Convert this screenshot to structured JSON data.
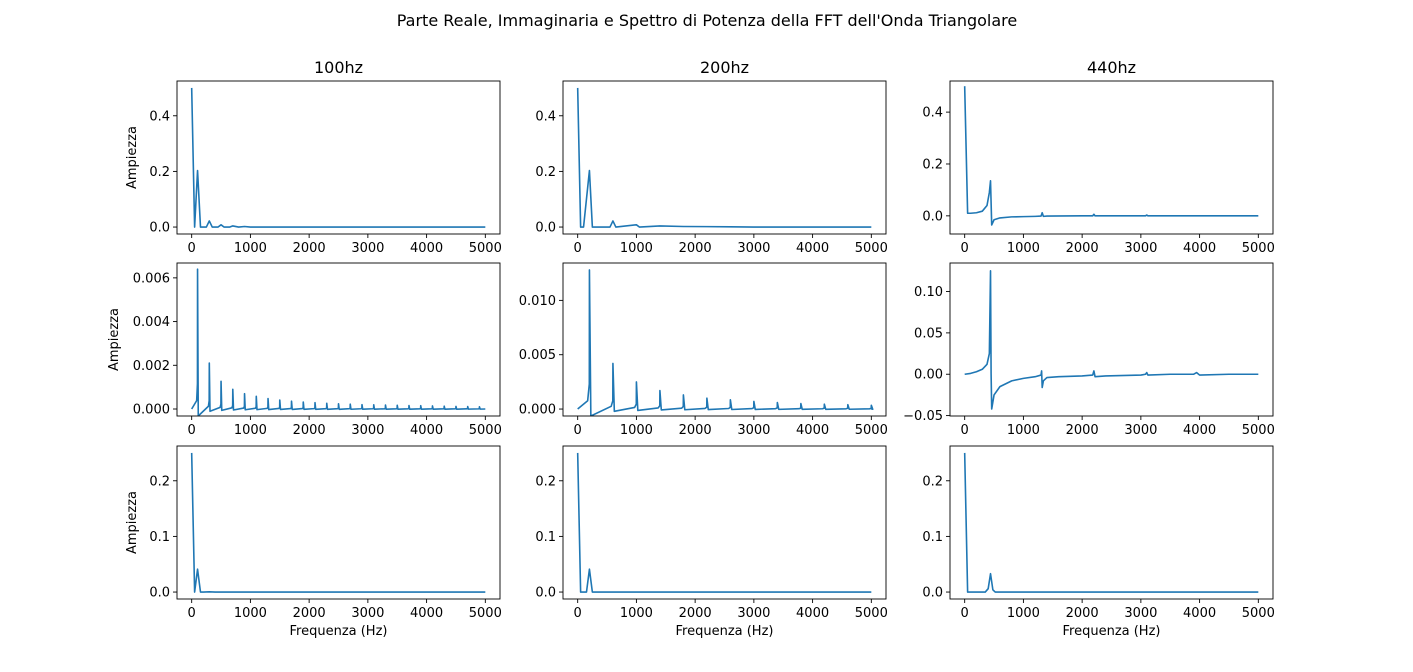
{
  "figure": {
    "suptitle": "Parte Reale, Immaginaria e Spettro di Potenza della FFT dell'Onda Triangolare"
  },
  "style": {
    "line_color": "#1f77b4",
    "axis_color": "#000000",
    "background": "#ffffff"
  },
  "chart_data": [
    {
      "type": "line",
      "row": 0,
      "col": 0,
      "title": "100hz",
      "xlabel": "",
      "ylabel": "Ampiezza",
      "xlim": [
        -250,
        5250
      ],
      "ylim": [
        -0.025,
        0.525
      ],
      "xticks": [
        0,
        1000,
        2000,
        3000,
        4000,
        5000
      ],
      "yticks": [
        0.0,
        0.2,
        0.4
      ],
      "ytick_labels": [
        "0.0",
        "0.2",
        "0.4"
      ],
      "x": [
        0,
        50,
        100,
        150,
        200,
        250,
        300,
        350,
        400,
        450,
        500,
        550,
        600,
        650,
        700,
        800,
        900,
        1000,
        1200,
        1500,
        2000,
        3000,
        4000,
        5000
      ],
      "y": [
        0.5,
        0.0,
        0.203,
        0.0,
        0.0,
        0.0,
        0.022,
        0.0,
        0.0,
        0.0,
        0.008,
        0.0,
        0.0,
        0.0,
        0.004,
        0.0,
        0.002,
        0.0,
        0.0,
        0.0,
        0.0,
        0.0,
        0.0,
        0.0
      ]
    },
    {
      "type": "line",
      "row": 0,
      "col": 1,
      "title": "200hz",
      "xlabel": "",
      "ylabel": "",
      "xlim": [
        -250,
        5250
      ],
      "ylim": [
        -0.025,
        0.525
      ],
      "xticks": [
        0,
        1000,
        2000,
        3000,
        4000,
        5000
      ],
      "yticks": [
        0.0,
        0.2,
        0.4
      ],
      "ytick_labels": [
        "0.0",
        "0.2",
        "0.4"
      ],
      "x": [
        0,
        50,
        100,
        200,
        250,
        300,
        550,
        600,
        650,
        1000,
        1050,
        1400,
        1800,
        2200,
        2600,
        3000,
        4000,
        5000
      ],
      "y": [
        0.5,
        0.0,
        0.0,
        0.203,
        0.0,
        0.0,
        0.0,
        0.022,
        0.0,
        0.008,
        0.0,
        0.004,
        0.002,
        0.0015,
        0.001,
        0.0,
        0.0,
        0.0
      ]
    },
    {
      "type": "line",
      "row": 0,
      "col": 2,
      "title": "440hz",
      "xlabel": "",
      "ylabel": "",
      "xlim": [
        -250,
        5250
      ],
      "ylim": [
        -0.07,
        0.52
      ],
      "xticks": [
        0,
        1000,
        2000,
        3000,
        4000,
        5000
      ],
      "yticks": [
        0.0,
        0.2,
        0.4
      ],
      "ytick_labels": [
        "0.0",
        "0.2",
        "0.4"
      ],
      "x": [
        0,
        50,
        100,
        200,
        300,
        380,
        420,
        440,
        460,
        500,
        600,
        800,
        1000,
        1200,
        1300,
        1320,
        1340,
        1400,
        2000,
        2180,
        2200,
        2220,
        3000,
        3080,
        3100,
        3120,
        4000,
        5000
      ],
      "y": [
        0.5,
        0.01,
        0.01,
        0.012,
        0.018,
        0.04,
        0.09,
        0.135,
        -0.035,
        -0.015,
        -0.008,
        -0.004,
        -0.003,
        -0.002,
        -0.001,
        0.012,
        -0.002,
        -0.001,
        0.0,
        0.0,
        0.006,
        0.0,
        0.0,
        0.0,
        0.003,
        0.0,
        0.0,
        0.0
      ]
    },
    {
      "type": "line",
      "row": 1,
      "col": 0,
      "title": "",
      "xlabel": "",
      "ylabel": "Ampiezza",
      "xlim": [
        -250,
        5250
      ],
      "ylim": [
        -0.00032,
        0.00668
      ],
      "xticks": [
        0,
        1000,
        2000,
        3000,
        4000,
        5000
      ],
      "yticks": [
        0.0,
        0.002,
        0.004,
        0.006
      ],
      "ytick_labels": [
        "0.000",
        "0.002",
        "0.004",
        "0.006"
      ],
      "harmonic_f0": 100,
      "harmonics": [
        [
          100,
          0.0064
        ],
        [
          300,
          0.0021
        ],
        [
          500,
          0.00127
        ],
        [
          700,
          0.0009
        ],
        [
          900,
          0.0007
        ],
        [
          1100,
          0.00058
        ],
        [
          1300,
          0.00048
        ],
        [
          1500,
          0.00041
        ],
        [
          1700,
          0.00036
        ],
        [
          1900,
          0.00032
        ],
        [
          2100,
          0.00029
        ],
        [
          2300,
          0.00026
        ],
        [
          2500,
          0.00024
        ],
        [
          2700,
          0.00022
        ],
        [
          2900,
          0.0002
        ],
        [
          3100,
          0.00019
        ],
        [
          3300,
          0.00018
        ],
        [
          3500,
          0.00017
        ],
        [
          3700,
          0.00016
        ],
        [
          3900,
          0.00015
        ],
        [
          4100,
          0.00014
        ],
        [
          4300,
          0.00013
        ],
        [
          4500,
          0.00012
        ],
        [
          4700,
          0.00011
        ],
        [
          4900,
          0.0001
        ]
      ]
    },
    {
      "type": "line",
      "row": 1,
      "col": 1,
      "title": "",
      "xlabel": "",
      "ylabel": "",
      "xlim": [
        -250,
        5250
      ],
      "ylim": [
        -0.00064,
        0.01344
      ],
      "xticks": [
        0,
        1000,
        2000,
        3000,
        4000,
        5000
      ],
      "yticks": [
        0.0,
        0.005,
        0.01
      ],
      "ytick_labels": [
        "0.000",
        "0.005",
        "0.010"
      ],
      "harmonic_f0": 200,
      "harmonics": [
        [
          200,
          0.0128
        ],
        [
          600,
          0.0042
        ],
        [
          1000,
          0.0025
        ],
        [
          1400,
          0.0017
        ],
        [
          1800,
          0.0013
        ],
        [
          2200,
          0.001
        ],
        [
          2600,
          0.00085
        ],
        [
          3000,
          0.0007
        ],
        [
          3400,
          0.0006
        ],
        [
          3800,
          0.0005
        ],
        [
          4200,
          0.00045
        ],
        [
          4600,
          0.0004
        ],
        [
          5000,
          0.00035
        ]
      ]
    },
    {
      "type": "line",
      "row": 1,
      "col": 2,
      "title": "",
      "xlabel": "",
      "ylabel": "",
      "xlim": [
        -250,
        5250
      ],
      "ylim": [
        -0.0505,
        0.1345
      ],
      "xticks": [
        0,
        1000,
        2000,
        3000,
        4000,
        5000
      ],
      "yticks": [
        -0.05,
        0.0,
        0.05,
        0.1
      ],
      "ytick_labels": [
        "−0.05",
        "0.00",
        "0.05",
        "0.10"
      ],
      "x": [
        0,
        100,
        200,
        300,
        380,
        420,
        440,
        450,
        460,
        500,
        600,
        800,
        1000,
        1200,
        1300,
        1310,
        1320,
        1340,
        1400,
        1600,
        2000,
        2180,
        2200,
        2220,
        2400,
        3000,
        3080,
        3100,
        3120,
        3500,
        3900,
        3950,
        4000,
        4500,
        5000
      ],
      "y": [
        0.0,
        0.001,
        0.003,
        0.006,
        0.012,
        0.025,
        0.125,
        0.0,
        -0.042,
        -0.025,
        -0.015,
        -0.008,
        -0.005,
        -0.003,
        -0.001,
        0.004,
        -0.016,
        -0.008,
        -0.004,
        -0.003,
        -0.002,
        -0.001,
        0.004,
        -0.003,
        -0.002,
        -0.001,
        0.0,
        0.002,
        -0.001,
        0.0,
        0.0,
        0.002,
        -0.001,
        0.0,
        0.0
      ]
    },
    {
      "type": "line",
      "row": 2,
      "col": 0,
      "title": "",
      "xlabel": "Frequenza (Hz)",
      "ylabel": "Ampiezza",
      "xlim": [
        -250,
        5250
      ],
      "ylim": [
        -0.0125,
        0.2625
      ],
      "xticks": [
        0,
        1000,
        2000,
        3000,
        4000,
        5000
      ],
      "yticks": [
        0.0,
        0.1,
        0.2
      ],
      "ytick_labels": [
        "0.0",
        "0.1",
        "0.2"
      ],
      "x": [
        0,
        50,
        100,
        150,
        200,
        300,
        400,
        1000,
        2000,
        3000,
        4000,
        5000
      ],
      "y": [
        0.25,
        0.0,
        0.041,
        0.0,
        0.0,
        0.0005,
        0.0,
        0.0,
        0.0,
        0.0,
        0.0,
        0.0
      ]
    },
    {
      "type": "line",
      "row": 2,
      "col": 1,
      "title": "",
      "xlabel": "Frequenza (Hz)",
      "ylabel": "",
      "xlim": [
        -250,
        5250
      ],
      "ylim": [
        -0.0125,
        0.2625
      ],
      "xticks": [
        0,
        1000,
        2000,
        3000,
        4000,
        5000
      ],
      "yticks": [
        0.0,
        0.1,
        0.2
      ],
      "ytick_labels": [
        "0.0",
        "0.1",
        "0.2"
      ],
      "x": [
        0,
        50,
        150,
        200,
        250,
        350,
        1000,
        2000,
        3000,
        4000,
        5000
      ],
      "y": [
        0.25,
        0.0,
        0.0,
        0.041,
        0.0,
        0.0,
        0.0,
        0.0,
        0.0,
        0.0,
        0.0
      ]
    },
    {
      "type": "line",
      "row": 2,
      "col": 2,
      "title": "",
      "xlabel": "Frequenza (Hz)",
      "ylabel": "",
      "xlim": [
        -250,
        5250
      ],
      "ylim": [
        -0.0125,
        0.2625
      ],
      "xticks": [
        0,
        1000,
        2000,
        3000,
        4000,
        5000
      ],
      "yticks": [
        0.0,
        0.1,
        0.2
      ],
      "ytick_labels": [
        "0.0",
        "0.1",
        "0.2"
      ],
      "x": [
        0,
        50,
        350,
        400,
        440,
        480,
        520,
        1000,
        2000,
        3000,
        4000,
        5000
      ],
      "y": [
        0.25,
        0.0,
        0.0,
        0.006,
        0.033,
        0.004,
        0.0,
        0.0,
        0.0,
        0.0,
        0.0,
        0.0
      ]
    }
  ]
}
